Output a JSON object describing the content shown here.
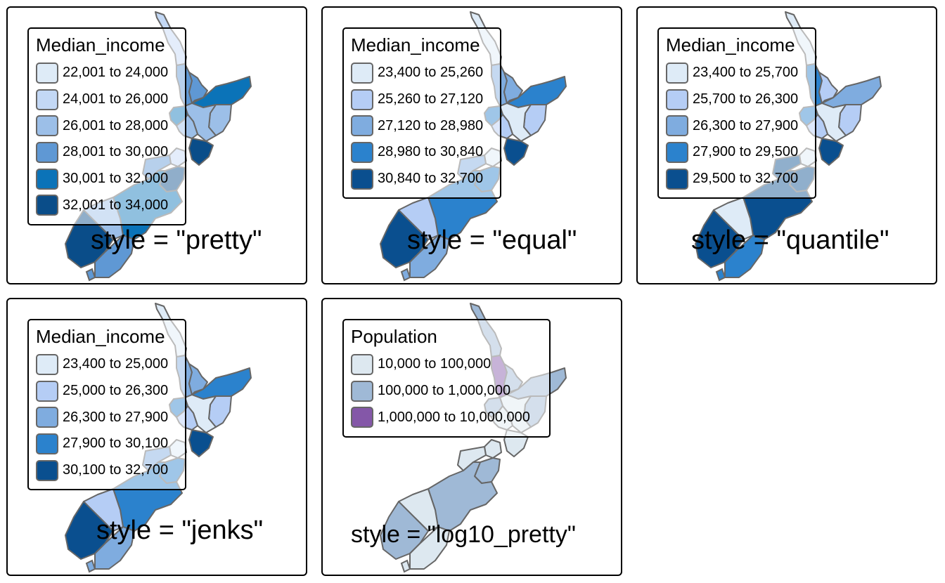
{
  "colors": {
    "blues": [
      "#deebf7",
      "#c6dbef",
      "#9ecae1",
      "#6baed6",
      "#2171b5",
      "#08519c"
    ],
    "blues5": [
      "#deebf7",
      "#b5cdf5",
      "#7facdf",
      "#2b82cd",
      "#0a4f8f"
    ],
    "blues6": [
      "#deebf7",
      "#c3d8f5",
      "#9cbfe8",
      "#5f98d4",
      "#0b73b8",
      "#0a4d89"
    ],
    "population": [
      "#dde8f0",
      "#9fb9d6",
      "#8457a8"
    ],
    "border": "#666666"
  },
  "panels": [
    {
      "caption": "style = \"pretty\"",
      "legend": {
        "title": "Median_income",
        "items": [
          "22,001 to 24,000",
          "24,001 to 26,000",
          "26,001 to 28,000",
          "28,001 to 30,000",
          "30,001 to 32,000",
          "32,001 to 34,000"
        ]
      }
    },
    {
      "caption": "style = \"equal\"",
      "legend": {
        "title": "Median_income",
        "items": [
          "23,400 to 25,260",
          "25,260 to 27,120",
          "27,120 to 28,980",
          "28,980 to 30,840",
          "30,840 to 32,700"
        ]
      }
    },
    {
      "caption": "style = \"quantile\"",
      "legend": {
        "title": "Median_income",
        "items": [
          "23,400 to 25,700",
          "25,700 to 26,300",
          "26,300 to 27,900",
          "27,900 to 29,500",
          "29,500 to 32,700"
        ]
      }
    },
    {
      "caption": "style = \"jenks\"",
      "legend": {
        "title": "Median_income",
        "items": [
          "23,400 to 25,000",
          "25,000 to 26,300",
          "26,300 to 27,900",
          "27,900 to 30,100",
          "30,100 to 32,700"
        ]
      }
    },
    {
      "caption": "style = \"log10_pretty\"",
      "legend": {
        "title": "Population",
        "items": [
          "10,000 to 100,000",
          "100,000 to 1,000,000",
          "1,000,000 to 10,000,000"
        ]
      }
    }
  ],
  "region_classes": {
    "pretty": [
      1,
      3,
      3,
      4,
      2,
      2,
      4,
      2,
      5,
      1,
      3,
      5,
      4,
      2,
      5,
      3
    ],
    "equal": [
      0,
      2,
      2,
      3,
      1,
      0,
      3,
      1,
      4,
      0,
      2,
      3,
      3,
      1,
      4,
      2
    ],
    "quantile": [
      0,
      3,
      1,
      2,
      1,
      0,
      3,
      1,
      4,
      0,
      4,
      4,
      4,
      0,
      4,
      3
    ],
    "jenks": [
      0,
      2,
      2,
      3,
      1,
      0,
      3,
      1,
      4,
      0,
      2,
      3,
      3,
      1,
      4,
      2
    ],
    "log10_pretty": [
      1,
      2,
      1,
      1,
      1,
      0,
      1,
      0,
      0,
      0,
      0,
      1,
      1,
      0,
      1,
      0
    ]
  }
}
